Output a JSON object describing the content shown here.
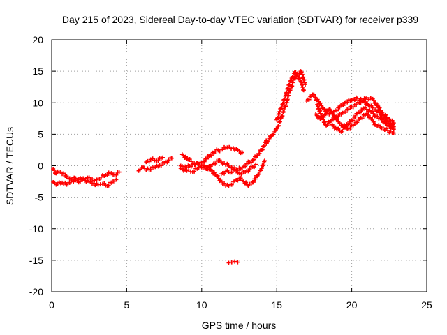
{
  "chart_data": {
    "type": "scatter",
    "title": "Day 215 of 2023, Sidereal Day-to-day VTEC variation (SDTVAR) for receiver p339",
    "xlabel": "GPS time / hours",
    "ylabel": "SDTVAR / TECUs",
    "xlim": [
      0,
      25
    ],
    "ylim": [
      -20,
      20
    ],
    "xticks": [
      0,
      5,
      10,
      15,
      20,
      25
    ],
    "yticks": [
      -20,
      -15,
      -10,
      -5,
      0,
      5,
      10,
      15,
      20
    ],
    "grid": true,
    "marker": "+",
    "color": "#ff0000",
    "series": [
      {
        "name": "track-a",
        "points": [
          [
            0.1,
            -0.5
          ],
          [
            0.3,
            -1.2
          ],
          [
            0.6,
            -1.0
          ],
          [
            0.9,
            -1.6
          ],
          [
            1.2,
            -2.0
          ],
          [
            1.5,
            -1.9
          ],
          [
            1.8,
            -2.2
          ],
          [
            2.1,
            -2.0
          ],
          [
            2.4,
            -1.9
          ],
          [
            2.7,
            -2.1
          ],
          [
            3.0,
            -2.2
          ],
          [
            3.3,
            -1.8
          ],
          [
            3.6,
            -1.5
          ],
          [
            3.9,
            -1.2
          ],
          [
            4.2,
            -1.4
          ],
          [
            4.5,
            -1.0
          ]
        ]
      },
      {
        "name": "track-b",
        "points": [
          [
            0.1,
            -2.6
          ],
          [
            0.4,
            -2.9
          ],
          [
            0.7,
            -2.7
          ],
          [
            1.0,
            -3.0
          ],
          [
            1.3,
            -2.4
          ],
          [
            1.6,
            -2.3
          ],
          [
            1.9,
            -2.5
          ],
          [
            2.2,
            -2.4
          ],
          [
            2.5,
            -2.6
          ],
          [
            2.8,
            -2.8
          ],
          [
            3.1,
            -3.0
          ],
          [
            3.4,
            -2.9
          ],
          [
            3.7,
            -3.2
          ],
          [
            4.0,
            -2.7
          ],
          [
            4.3,
            -2.2
          ]
        ]
      },
      {
        "name": "track-c",
        "points": [
          [
            5.8,
            -0.8
          ],
          [
            6.0,
            -0.3
          ],
          [
            6.5,
            -0.6
          ],
          [
            6.9,
            -0.2
          ],
          [
            7.2,
            0.1
          ],
          [
            7.5,
            0.5
          ],
          [
            7.8,
            0.9
          ],
          [
            8.0,
            1.2
          ]
        ]
      },
      {
        "name": "track-d",
        "points": [
          [
            6.3,
            0.6
          ],
          [
            6.6,
            1.0
          ],
          [
            7.0,
            0.8
          ],
          [
            7.4,
            1.3
          ]
        ]
      },
      {
        "name": "arc-upper",
        "points": [
          [
            8.6,
            0.0
          ],
          [
            9.0,
            -0.3
          ],
          [
            9.4,
            0.2
          ],
          [
            9.8,
            0.3
          ],
          [
            10.1,
            0.7
          ],
          [
            10.5,
            1.5
          ],
          [
            10.9,
            2.3
          ],
          [
            11.3,
            2.6
          ],
          [
            11.7,
            2.9
          ],
          [
            12.1,
            2.8
          ],
          [
            12.4,
            2.5
          ],
          [
            12.7,
            2.1
          ]
        ]
      },
      {
        "name": "arc-middle",
        "points": [
          [
            8.7,
            1.8
          ],
          [
            9.1,
            1.0
          ],
          [
            9.5,
            0.4
          ],
          [
            9.9,
            0.1
          ],
          [
            10.3,
            -0.5
          ],
          [
            10.7,
            0.2
          ],
          [
            11.1,
            0.8
          ],
          [
            11.5,
            0.4
          ],
          [
            11.9,
            -0.2
          ],
          [
            12.3,
            -0.6
          ],
          [
            12.7,
            -0.3
          ],
          [
            13.0,
            0.3
          ],
          [
            13.4,
            0.9
          ],
          [
            13.7,
            1.6
          ],
          [
            14.0,
            2.5
          ],
          [
            14.3,
            4.0
          ]
        ]
      },
      {
        "name": "arc-lower",
        "points": [
          [
            8.6,
            -0.4
          ],
          [
            9.0,
            -0.8
          ],
          [
            9.4,
            -1.0
          ],
          [
            9.8,
            -0.3
          ],
          [
            10.2,
            0.0
          ],
          [
            10.6,
            -0.6
          ],
          [
            11.0,
            -1.6
          ],
          [
            11.3,
            -2.6
          ],
          [
            11.6,
            -3.2
          ],
          [
            11.9,
            -3.0
          ],
          [
            12.2,
            -2.4
          ],
          [
            12.5,
            -2.0
          ],
          [
            12.8,
            -2.5
          ],
          [
            13.1,
            -3.2
          ],
          [
            13.4,
            -2.6
          ],
          [
            13.7,
            -1.6
          ],
          [
            14.0,
            -0.4
          ],
          [
            14.2,
            0.8
          ]
        ]
      },
      {
        "name": "arc-lower-2",
        "points": [
          [
            11.3,
            -1.3
          ],
          [
            11.6,
            -0.9
          ],
          [
            11.9,
            -1.1
          ],
          [
            12.2,
            -0.7
          ],
          [
            12.5,
            -1.2
          ],
          [
            12.9,
            -1.0
          ],
          [
            13.2,
            -0.5
          ],
          [
            13.6,
            0.2
          ]
        ]
      },
      {
        "name": "outlier",
        "points": [
          [
            11.8,
            -15.4
          ],
          [
            12.0,
            -15.3
          ],
          [
            12.2,
            -15.2
          ],
          [
            12.4,
            -15.3
          ]
        ]
      },
      {
        "name": "rise",
        "points": [
          [
            14.3,
            3.5
          ],
          [
            14.5,
            4.3
          ],
          [
            14.7,
            4.9
          ],
          [
            14.9,
            5.5
          ],
          [
            15.1,
            6.3
          ],
          [
            15.3,
            7.6
          ],
          [
            15.5,
            8.9
          ],
          [
            15.7,
            10.4
          ],
          [
            15.8,
            11.6
          ],
          [
            16.0,
            12.6
          ],
          [
            16.1,
            13.6
          ],
          [
            16.3,
            14.3
          ],
          [
            16.5,
            14.6
          ],
          [
            16.6,
            15.0
          ],
          [
            16.7,
            14.5
          ],
          [
            16.9,
            12.9
          ]
        ]
      },
      {
        "name": "rise-2",
        "points": [
          [
            15.0,
            7.3
          ],
          [
            15.2,
            8.6
          ],
          [
            15.4,
            9.8
          ],
          [
            15.6,
            11.2
          ],
          [
            15.8,
            12.8
          ],
          [
            16.0,
            13.9
          ],
          [
            16.2,
            14.8
          ],
          [
            16.4,
            14.2
          ],
          [
            16.6,
            13.4
          ],
          [
            16.8,
            12.0
          ]
        ]
      },
      {
        "name": "band-1",
        "points": [
          [
            17.0,
            10.3
          ],
          [
            17.4,
            11.3
          ],
          [
            17.8,
            10.2
          ],
          [
            18.1,
            9.1
          ],
          [
            18.4,
            8.3
          ],
          [
            18.8,
            8.6
          ],
          [
            19.2,
            9.3
          ],
          [
            19.6,
            10.1
          ],
          [
            20.0,
            10.4
          ],
          [
            20.4,
            10.7
          ],
          [
            20.8,
            10.3
          ],
          [
            21.2,
            9.5
          ],
          [
            21.6,
            8.9
          ],
          [
            22.0,
            8.1
          ],
          [
            22.4,
            7.0
          ],
          [
            22.8,
            6.2
          ]
        ]
      },
      {
        "name": "band-2",
        "points": [
          [
            17.7,
            9.7
          ],
          [
            18.0,
            7.8
          ],
          [
            18.3,
            6.4
          ],
          [
            18.6,
            7.1
          ],
          [
            19.0,
            7.9
          ],
          [
            19.4,
            8.4
          ],
          [
            19.8,
            9.0
          ],
          [
            20.2,
            9.7
          ],
          [
            20.6,
            10.0
          ],
          [
            21.0,
            10.8
          ],
          [
            21.4,
            10.6
          ],
          [
            21.8,
            9.2
          ],
          [
            22.1,
            8.2
          ],
          [
            22.4,
            7.5
          ],
          [
            22.8,
            6.8
          ]
        ]
      },
      {
        "name": "band-3",
        "points": [
          [
            17.6,
            8.2
          ],
          [
            17.9,
            7.4
          ],
          [
            18.2,
            8.1
          ],
          [
            18.5,
            9.0
          ],
          [
            18.8,
            8.0
          ],
          [
            19.1,
            7.0
          ],
          [
            19.4,
            6.4
          ],
          [
            19.8,
            5.9
          ],
          [
            20.2,
            6.6
          ],
          [
            20.6,
            7.6
          ],
          [
            21.0,
            8.3
          ],
          [
            21.3,
            7.4
          ],
          [
            21.6,
            6.5
          ],
          [
            22.0,
            6.0
          ],
          [
            22.4,
            5.6
          ],
          [
            22.8,
            5.2
          ]
        ]
      },
      {
        "name": "band-4",
        "points": [
          [
            18.7,
            6.5
          ],
          [
            19.0,
            5.8
          ],
          [
            19.3,
            5.4
          ],
          [
            19.6,
            6.3
          ],
          [
            20.0,
            7.2
          ],
          [
            20.4,
            8.3
          ],
          [
            20.8,
            9.1
          ],
          [
            21.2,
            8.8
          ],
          [
            21.6,
            7.9
          ],
          [
            22.0,
            7.3
          ],
          [
            22.4,
            6.4
          ],
          [
            22.8,
            5.8
          ]
        ]
      }
    ]
  }
}
